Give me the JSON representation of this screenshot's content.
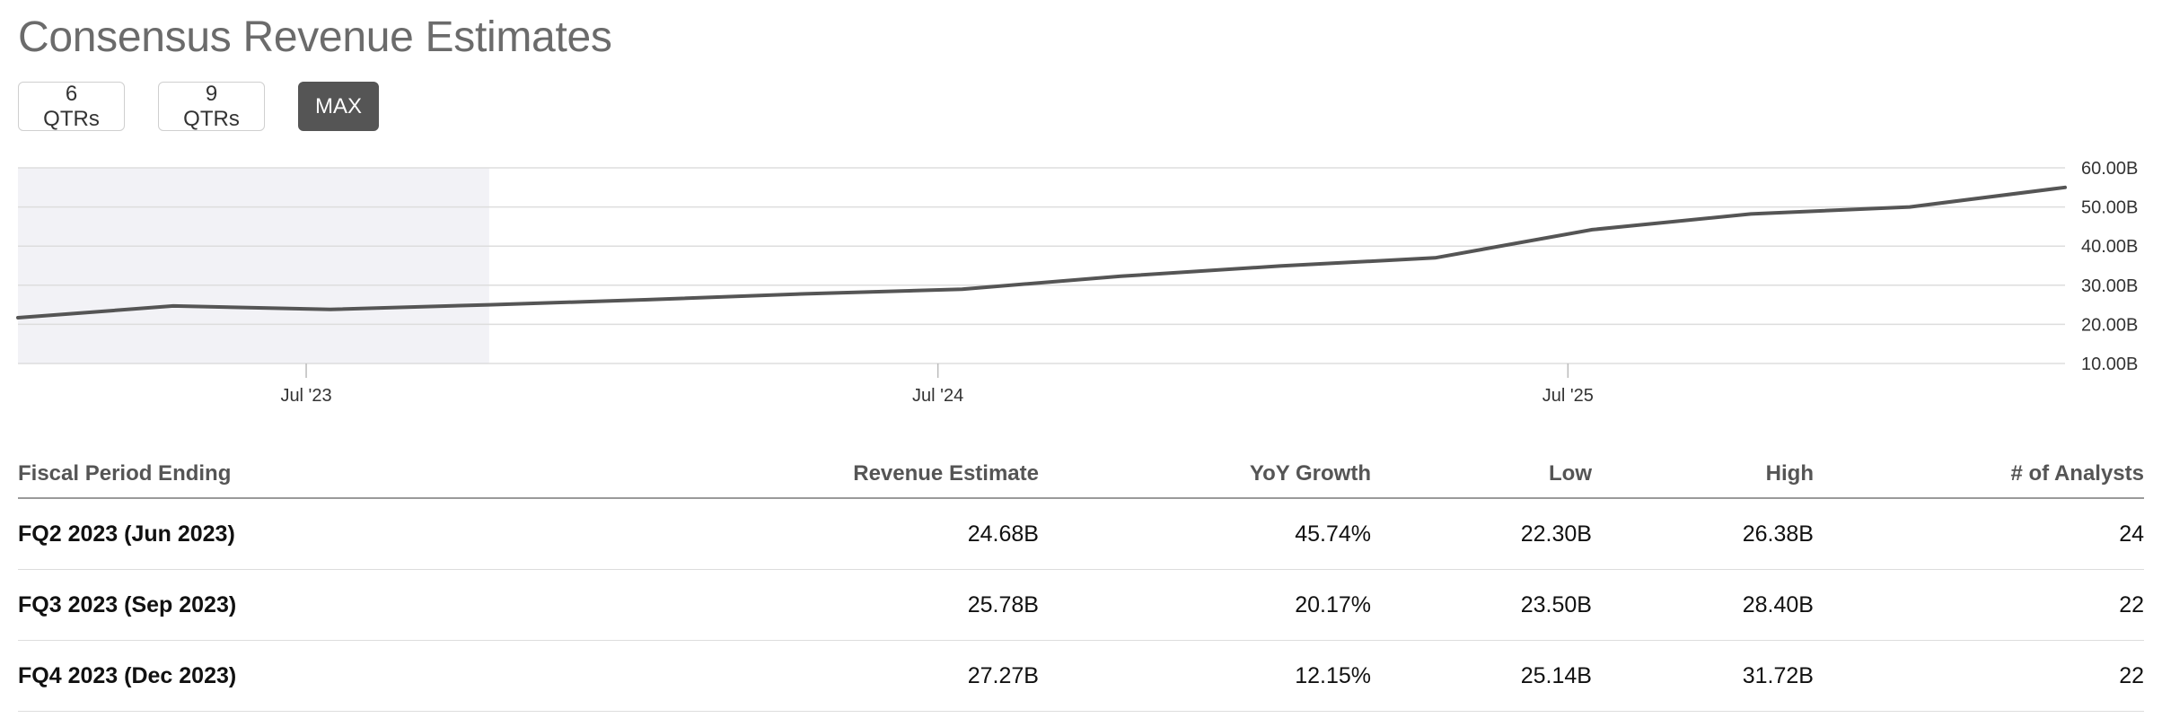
{
  "title": "Consensus Revenue Estimates",
  "range_buttons": [
    {
      "label": "6 QTRs",
      "active": false
    },
    {
      "label": "9 QTRs",
      "active": false
    },
    {
      "label": "MAX",
      "active": true
    }
  ],
  "chart_data": {
    "type": "line",
    "series": [
      {
        "values": [
          {
            "x": "2023-01-15",
            "y": 21.7
          },
          {
            "x": "2023-04-15",
            "y": 24.7
          },
          {
            "x": "2023-07-15",
            "y": 23.8
          },
          {
            "x": "2023-10-15",
            "y": 25.0
          },
          {
            "x": "2024-01-15",
            "y": 26.3
          },
          {
            "x": "2024-04-15",
            "y": 27.8
          },
          {
            "x": "2024-07-15",
            "y": 29.0
          },
          {
            "x": "2024-10-15",
            "y": 32.3
          },
          {
            "x": "2025-01-15",
            "y": 34.9
          },
          {
            "x": "2025-04-15",
            "y": 37.0
          },
          {
            "x": "2025-07-15",
            "y": 44.2
          },
          {
            "x": "2025-10-15",
            "y": 48.2
          },
          {
            "x": "2026-01-15",
            "y": 50.0
          },
          {
            "x": "2026-04-15",
            "y": 55.0
          }
        ]
      }
    ],
    "xlim": [
      "2023-01-15",
      "2026-04-15"
    ],
    "x_ticks": [
      {
        "x": "2023-07-01",
        "label": "Jul '23"
      },
      {
        "x": "2024-07-01",
        "label": "Jul '24"
      },
      {
        "x": "2025-07-01",
        "label": "Jul '25"
      }
    ],
    "y_ticks": [
      {
        "value": 60,
        "label": "60.00B"
      },
      {
        "value": 50,
        "label": "50.00B"
      },
      {
        "value": 40,
        "label": "40.00B"
      },
      {
        "value": 30,
        "label": "30.00B"
      },
      {
        "value": 20,
        "label": "20.00B"
      },
      {
        "value": 10,
        "label": "10.00B"
      }
    ],
    "ylim": [
      10,
      60
    ],
    "shaded_region": {
      "x_start": "2023-01-15",
      "x_end": "2023-10-15"
    },
    "grid": true,
    "line_color": "#555555",
    "shade_color": "#f2f2f6",
    "grid_color": "#dddddd"
  },
  "table": {
    "headers": [
      "Fiscal Period Ending",
      "Revenue Estimate",
      "YoY Growth",
      "Low",
      "High",
      "# of Analysts"
    ],
    "rows": [
      [
        "FQ2 2023 (Jun 2023)",
        "24.68B",
        "45.74%",
        "22.30B",
        "26.38B",
        "24"
      ],
      [
        "FQ3 2023 (Sep 2023)",
        "25.78B",
        "20.17%",
        "23.50B",
        "28.40B",
        "22"
      ],
      [
        "FQ4 2023 (Dec 2023)",
        "27.27B",
        "12.15%",
        "25.14B",
        "31.72B",
        "22"
      ]
    ]
  }
}
